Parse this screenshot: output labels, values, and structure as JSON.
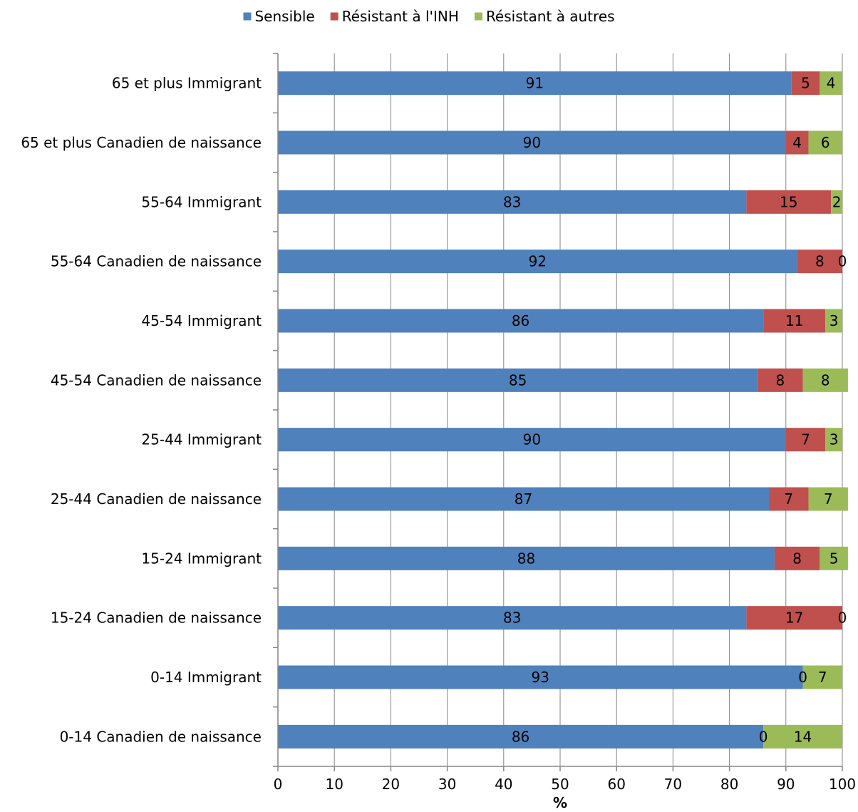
{
  "chart_data": {
    "type": "bar",
    "orientation": "horizontal",
    "stacked": true,
    "categories": [
      "65 et plus Immigrant",
      "65 et plus Canadien de naissance",
      "55-64 Immigrant",
      "55-64 Canadien de naissance",
      "45-54 Immigrant",
      "45-54 Canadien de naissance",
      "25-44 Immigrant",
      "25-44  Canadien de naissance",
      "15-24 Immigrant",
      "15-24 Canadien de naissance",
      "0-14  Immigrant",
      "0-14 Canadien de naissance"
    ],
    "series": [
      {
        "name": "Sensible",
        "color": "#4f81bd",
        "values": [
          91,
          90,
          83,
          92,
          86,
          85,
          90,
          87,
          88,
          83,
          93,
          86
        ],
        "labels": [
          "91",
          "90",
          "83",
          "92",
          "86",
          "85",
          "90",
          "87",
          "88",
          "83",
          "93",
          "86"
        ]
      },
      {
        "name": "Résistant à l'INH",
        "color": "#c0504d",
        "values": [
          5,
          4,
          15,
          8,
          11,
          8,
          7,
          7,
          8,
          17,
          0,
          0
        ],
        "labels": [
          "5",
          "4",
          "15",
          "8",
          "11",
          "8",
          "7",
          "7",
          "8",
          "17",
          "0",
          "0"
        ]
      },
      {
        "name": "Résistant à autres",
        "color": "#9bbb59",
        "values": [
          4,
          6,
          2,
          0,
          3,
          8,
          3,
          7,
          5,
          0,
          7,
          14
        ],
        "labels": [
          "4",
          "6",
          "2",
          "0",
          "3",
          "8",
          "3",
          "7",
          "5",
          "0",
          "7",
          "14"
        ]
      }
    ],
    "xlim": [
      0,
      100
    ],
    "xticks": [
      "0",
      "10",
      "20",
      "30",
      "40",
      "50",
      "60",
      "70",
      "80",
      "90",
      "100"
    ],
    "xlabel": "%",
    "ylabel": "",
    "title": "",
    "grid": true,
    "legend_position": "top"
  }
}
